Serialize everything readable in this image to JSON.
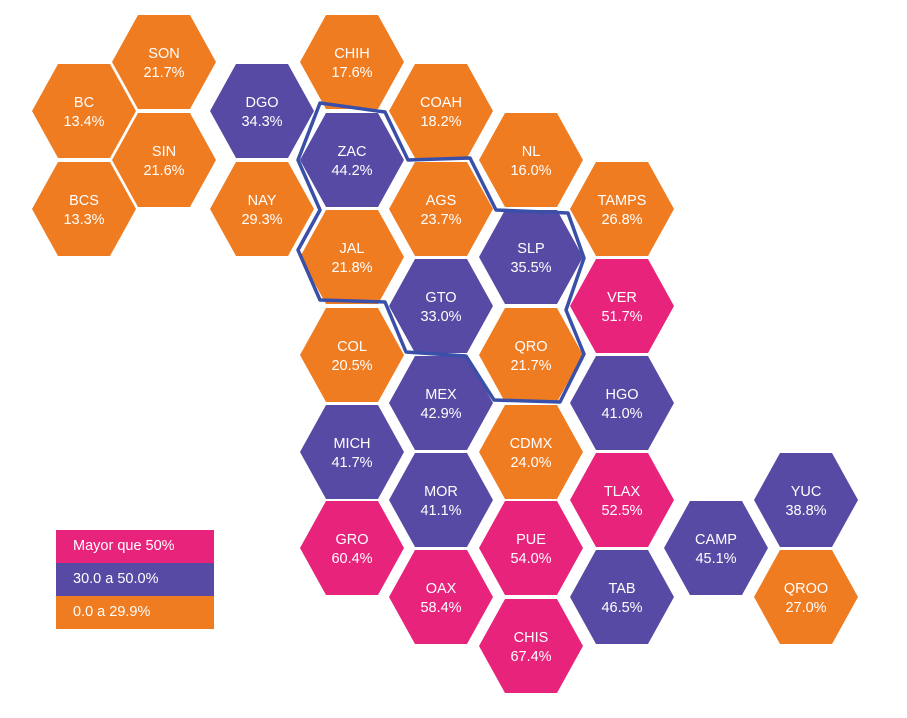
{
  "colors": {
    "high": "#E8237B",
    "mid": "#574AA4",
    "low": "#F07C22",
    "outline": "#3A4FA7",
    "background": "#FFFFFF"
  },
  "legend": [
    {
      "label": "Mayor que 50%",
      "category": "high"
    },
    {
      "label": "30.0 a 50.0%",
      "category": "mid"
    },
    {
      "label": "0.0 a 29.9%",
      "category": "low"
    }
  ],
  "states": [
    {
      "abbr": "SON",
      "value": "21.7%",
      "category": "low"
    },
    {
      "abbr": "BC",
      "value": "13.4%",
      "category": "low"
    },
    {
      "abbr": "DGO",
      "value": "34.3%",
      "category": "mid"
    },
    {
      "abbr": "CHIH",
      "value": "17.6%",
      "category": "low"
    },
    {
      "abbr": "SIN",
      "value": "21.6%",
      "category": "low"
    },
    {
      "abbr": "BCS",
      "value": "13.3%",
      "category": "low"
    },
    {
      "abbr": "ZAC",
      "value": "44.2%",
      "category": "mid"
    },
    {
      "abbr": "COAH",
      "value": "18.2%",
      "category": "low"
    },
    {
      "abbr": "NL",
      "value": "16.0%",
      "category": "low"
    },
    {
      "abbr": "NAY",
      "value": "29.3%",
      "category": "low"
    },
    {
      "abbr": "AGS",
      "value": "23.7%",
      "category": "low"
    },
    {
      "abbr": "TAMPS",
      "value": "26.8%",
      "category": "low"
    },
    {
      "abbr": "JAL",
      "value": "21.8%",
      "category": "low"
    },
    {
      "abbr": "SLP",
      "value": "35.5%",
      "category": "mid"
    },
    {
      "abbr": "GTO",
      "value": "33.0%",
      "category": "mid"
    },
    {
      "abbr": "VER",
      "value": "51.7%",
      "category": "high"
    },
    {
      "abbr": "COL",
      "value": "20.5%",
      "category": "low"
    },
    {
      "abbr": "QRO",
      "value": "21.7%",
      "category": "low"
    },
    {
      "abbr": "MEX",
      "value": "42.9%",
      "category": "mid"
    },
    {
      "abbr": "HGO",
      "value": "41.0%",
      "category": "mid"
    },
    {
      "abbr": "MICH",
      "value": "41.7%",
      "category": "mid"
    },
    {
      "abbr": "CDMX",
      "value": "24.0%",
      "category": "low"
    },
    {
      "abbr": "YUC",
      "value": "38.8%",
      "category": "mid"
    },
    {
      "abbr": "MOR",
      "value": "41.1%",
      "category": "mid"
    },
    {
      "abbr": "TLAX",
      "value": "52.5%",
      "category": "high"
    },
    {
      "abbr": "CAMP",
      "value": "45.1%",
      "category": "mid"
    },
    {
      "abbr": "GRO",
      "value": "60.4%",
      "category": "high"
    },
    {
      "abbr": "PUE",
      "value": "54.0%",
      "category": "high"
    },
    {
      "abbr": "QROO",
      "value": "27.0%",
      "category": "low"
    },
    {
      "abbr": "OAX",
      "value": "58.4%",
      "category": "high"
    },
    {
      "abbr": "TAB",
      "value": "46.5%",
      "category": "mid"
    },
    {
      "abbr": "CHIS",
      "value": "67.4%",
      "category": "high"
    }
  ]
}
